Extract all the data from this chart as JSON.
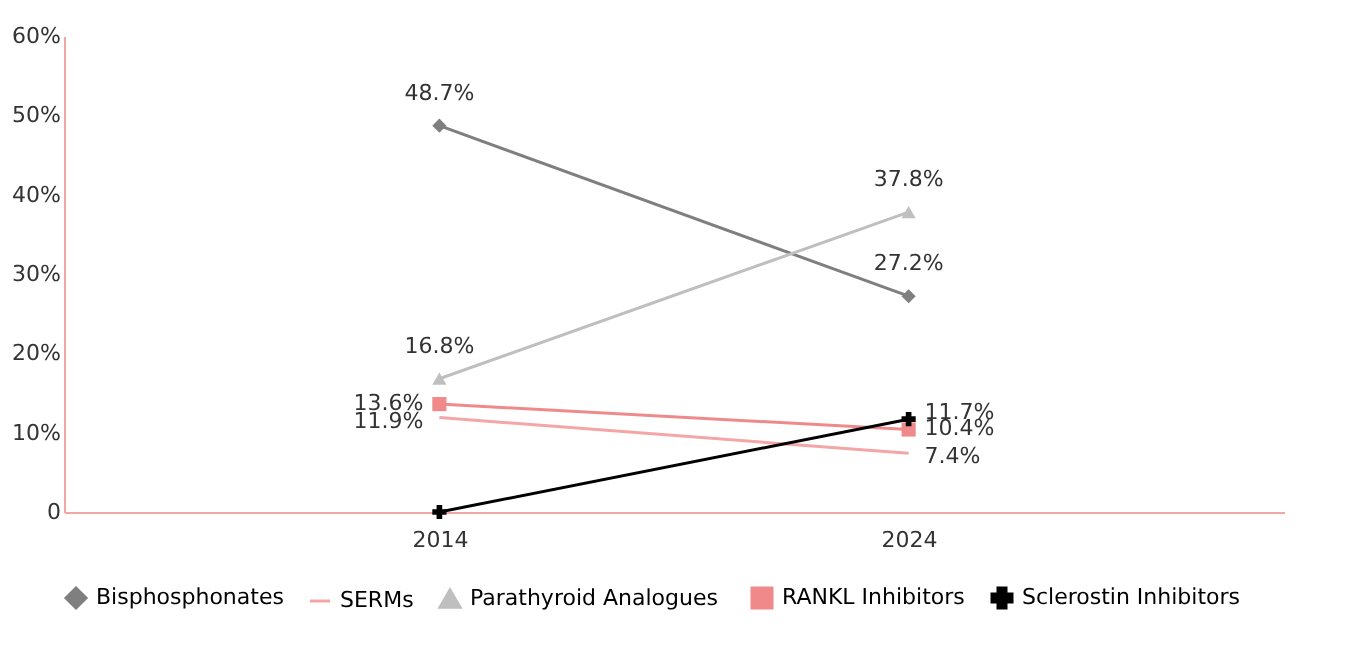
{
  "chart_data": {
    "type": "line",
    "categories": [
      "2014",
      "2024"
    ],
    "series": [
      {
        "name": "Bisphosphonates",
        "color": "#7f7f7f",
        "marker": "diamond",
        "values": [
          48.7,
          27.2
        ],
        "value_labels": [
          "48.7%",
          "27.2%"
        ]
      },
      {
        "name": "SERMs",
        "color": "#f4a6a6",
        "marker": "none",
        "values": [
          11.9,
          7.4
        ],
        "value_labels": [
          "11.9%",
          "7.4%"
        ]
      },
      {
        "name": "Parathyroid  Analogues",
        "color": "#bfbfbf",
        "marker": "triangle",
        "values": [
          16.8,
          37.8
        ],
        "value_labels": [
          "16.8%",
          "37.8%"
        ]
      },
      {
        "name": "RANKL Inhibitors",
        "color": "#f08a8a",
        "marker": "square",
        "values": [
          13.6,
          10.4
        ],
        "value_labels": [
          "13.6%",
          "10.4%"
        ]
      },
      {
        "name": "Sclerostin  Inhibitors",
        "color": "#000000",
        "marker": "cross",
        "values": [
          0,
          11.7
        ],
        "value_labels": [
          null,
          "11.7%"
        ]
      }
    ],
    "ylim": [
      0,
      60
    ],
    "yticks": [
      {
        "value": 0,
        "label": "0"
      },
      {
        "value": 10,
        "label": "10%"
      },
      {
        "value": 20,
        "label": "20%"
      },
      {
        "value": 30,
        "label": "30%"
      },
      {
        "value": 40,
        "label": "40%"
      },
      {
        "value": 50,
        "label": "50%"
      },
      {
        "value": 60,
        "label": "60%"
      }
    ],
    "grid": false,
    "legend": "bottom"
  }
}
